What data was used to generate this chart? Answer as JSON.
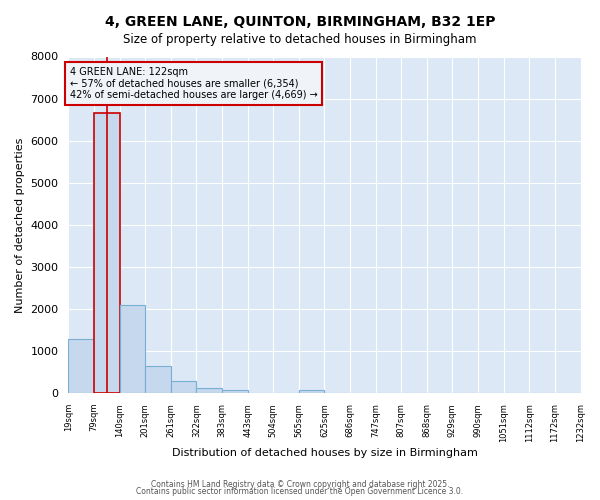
{
  "title": "4, GREEN LANE, QUINTON, BIRMINGHAM, B32 1EP",
  "subtitle": "Size of property relative to detached houses in Birmingham",
  "xlabel": "Distribution of detached houses by size in Birmingham",
  "ylabel": "Number of detached properties",
  "bar_color": "#c5d8ed",
  "bar_edge_color": "#7aafd4",
  "highlight_bar_edge_color": "#cc0000",
  "vline_color": "#cc0000",
  "property_bin_index": 1,
  "annotation_text": "4 GREEN LANE: 122sqm\n← 57% of detached houses are smaller (6,354)\n42% of semi-detached houses are larger (4,669) →",
  "annotation_box_facecolor": "#f0f4f8",
  "annotation_box_edgecolor": "#cc0000",
  "figure_facecolor": "#ffffff",
  "axes_facecolor": "#dce8f5",
  "grid_color": "#ffffff",
  "ylim": [
    0,
    8000
  ],
  "yticks": [
    0,
    1000,
    2000,
    3000,
    4000,
    5000,
    6000,
    7000,
    8000
  ],
  "bin_labels": [
    "19sqm",
    "79sqm",
    "140sqm",
    "201sqm",
    "261sqm",
    "322sqm",
    "383sqm",
    "443sqm",
    "504sqm",
    "565sqm",
    "625sqm",
    "686sqm",
    "747sqm",
    "807sqm",
    "868sqm",
    "929sqm",
    "990sqm",
    "1051sqm",
    "1112sqm",
    "1172sqm",
    "1232sqm"
  ],
  "bar_heights": [
    1300,
    6650,
    2100,
    650,
    300,
    120,
    75,
    0,
    0,
    75,
    0,
    0,
    0,
    0,
    0,
    0,
    0,
    0,
    0,
    0
  ],
  "vline_position": 1.5,
  "footer_line1": "Contains HM Land Registry data © Crown copyright and database right 2025.",
  "footer_line2": "Contains public sector information licensed under the Open Government Licence 3.0."
}
